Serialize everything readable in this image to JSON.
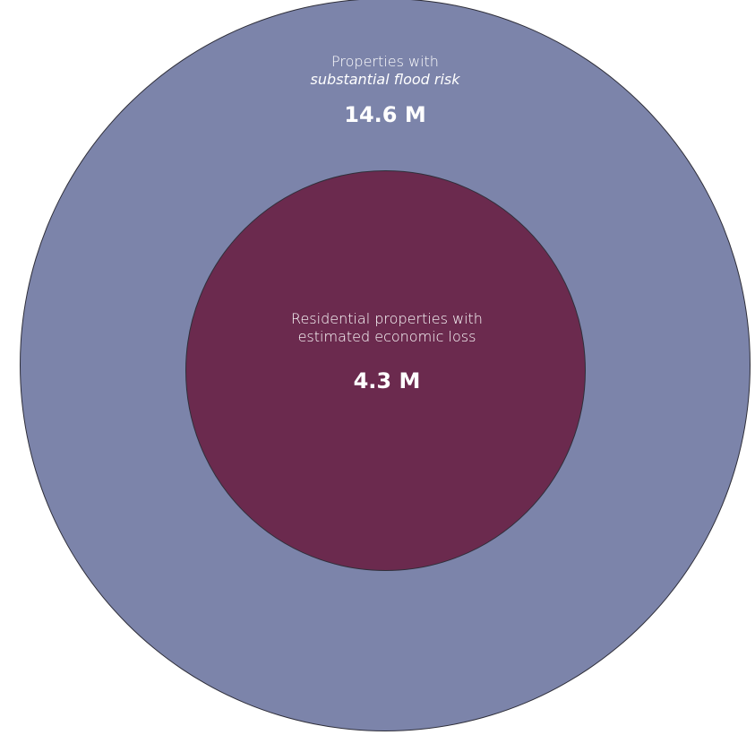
{
  "colors": {
    "outer_fill": "#7c84aa",
    "inner_fill": "#6b2a4e",
    "text": "#ffffff"
  },
  "outer_circle": {
    "label_line1": "Properties with",
    "label_line2": "substantial flood risk",
    "value": "14.6 M"
  },
  "inner_circle": {
    "label_line1": "Residential properties with",
    "label_line2": "estimated economic loss",
    "value": "4.3 M"
  }
}
